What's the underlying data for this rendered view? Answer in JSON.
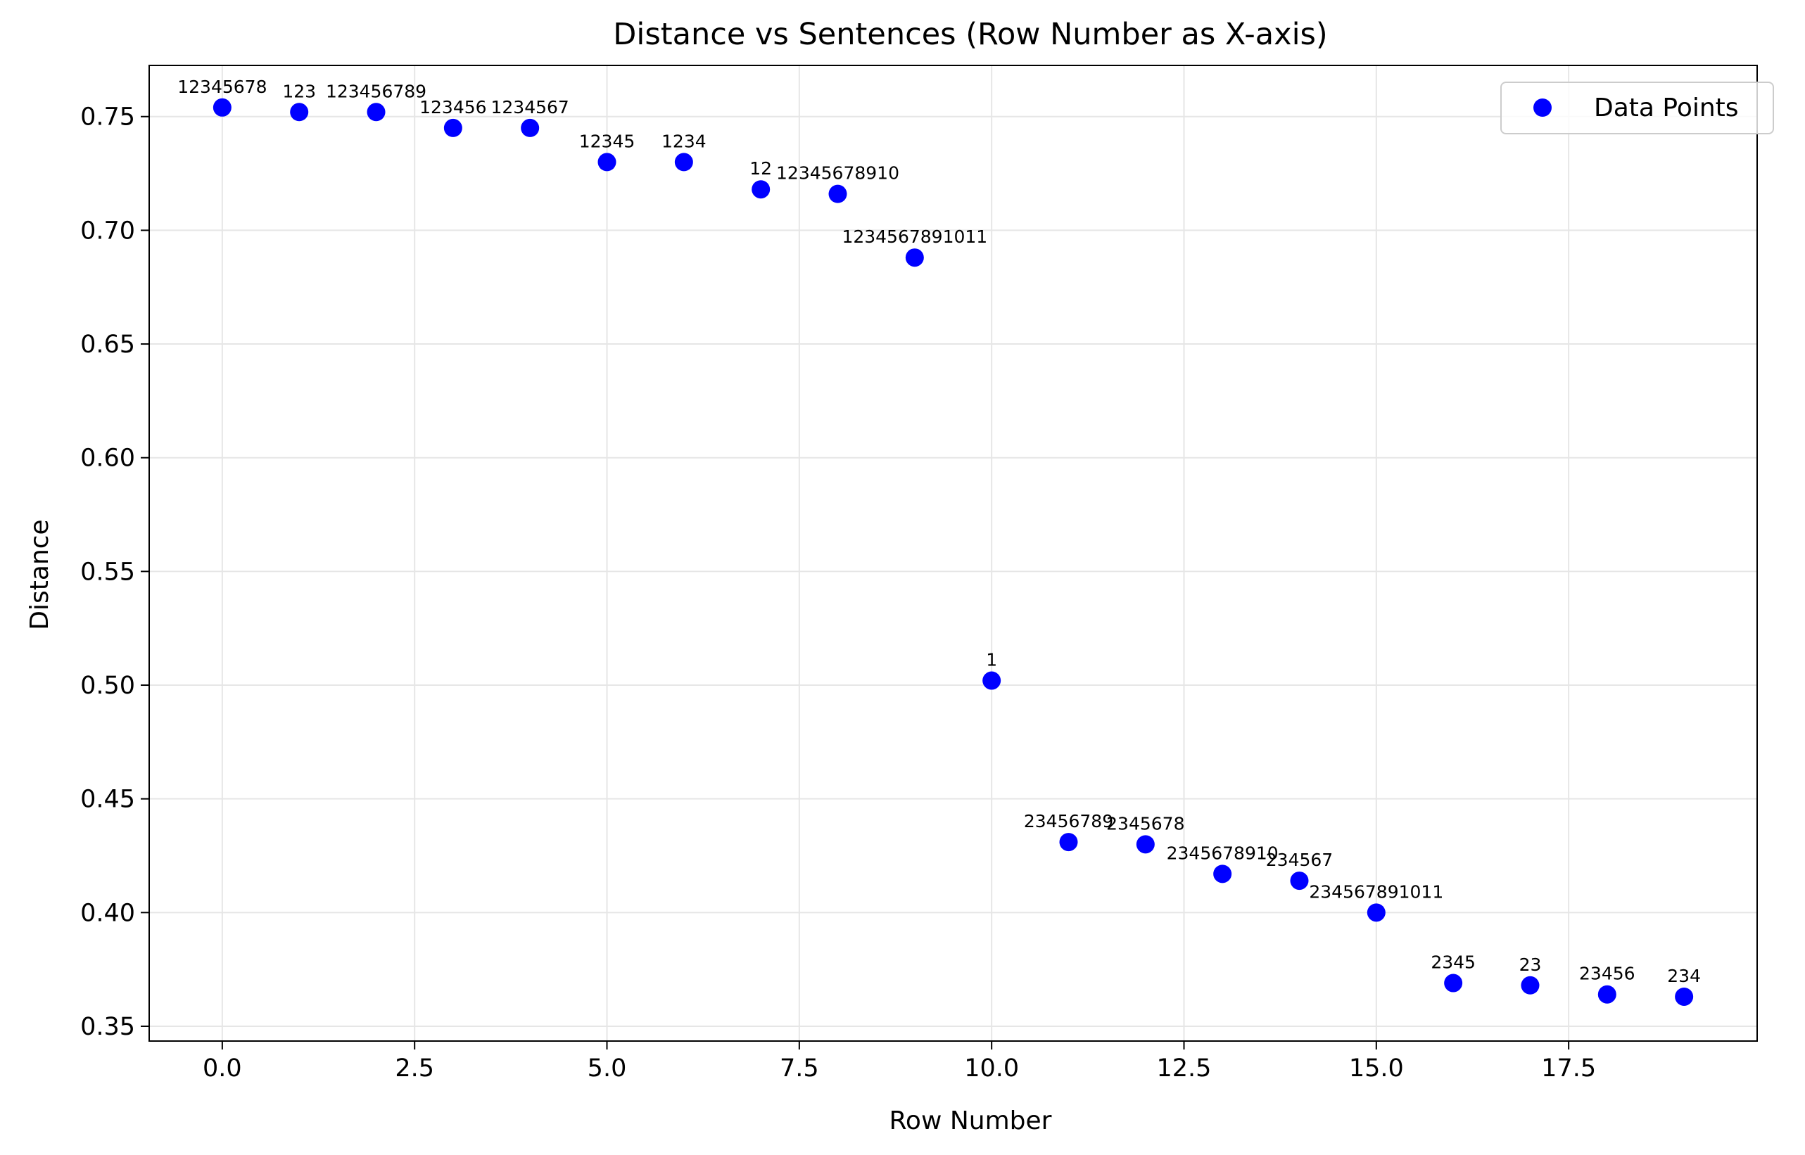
{
  "chart_data": {
    "type": "scatter",
    "title": "Distance vs Sentences (Row Number as X-axis)",
    "xlabel": "Row Number",
    "ylabel": "Distance",
    "xlim": [
      -0.95,
      19.95
    ],
    "ylim": [
      0.3435,
      0.7725
    ],
    "xticks": [
      0.0,
      2.5,
      5.0,
      7.5,
      10.0,
      12.5,
      15.0,
      17.5
    ],
    "xtick_labels": [
      "0.0",
      "2.5",
      "5.0",
      "7.5",
      "10.0",
      "12.5",
      "15.0",
      "17.5"
    ],
    "yticks": [
      0.35,
      0.4,
      0.45,
      0.5,
      0.55,
      0.6,
      0.65,
      0.7,
      0.75
    ],
    "ytick_labels": [
      "0.35",
      "0.40",
      "0.45",
      "0.50",
      "0.55",
      "0.60",
      "0.65",
      "0.70",
      "0.75"
    ],
    "grid": true,
    "legend_position": "top-right",
    "series": [
      {
        "name": "Data Points",
        "color": "#0000ff",
        "x": [
          0,
          1,
          2,
          3,
          4,
          5,
          6,
          7,
          8,
          9,
          10,
          11,
          12,
          13,
          14,
          15,
          16,
          17,
          18,
          19
        ],
        "y": [
          0.754,
          0.752,
          0.752,
          0.745,
          0.745,
          0.73,
          0.73,
          0.718,
          0.716,
          0.688,
          0.502,
          0.431,
          0.43,
          0.417,
          0.414,
          0.4,
          0.369,
          0.368,
          0.364,
          0.363
        ],
        "point_labels": [
          "12345678",
          "123",
          "123456789",
          "123456",
          "1234567",
          "12345",
          "1234",
          "12",
          "12345678910",
          "1234567891011",
          "1",
          "23456789",
          "2345678",
          "2345678910",
          "234567",
          "234567891011",
          "2345",
          "23",
          "23456",
          "234"
        ]
      }
    ]
  }
}
